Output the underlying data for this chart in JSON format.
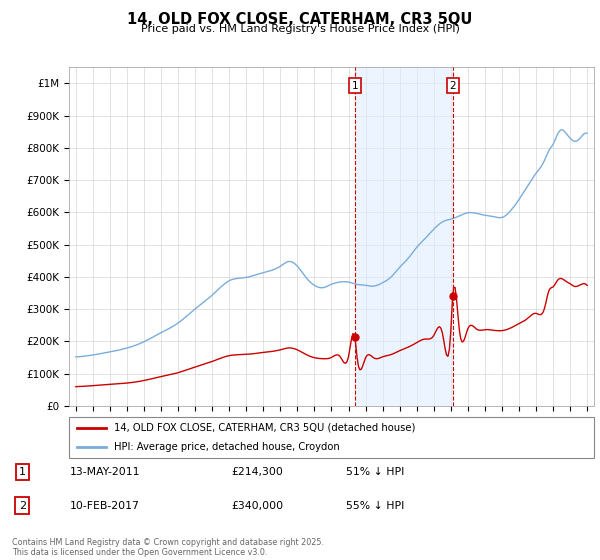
{
  "title": "14, OLD FOX CLOSE, CATERHAM, CR3 5QU",
  "subtitle": "Price paid vs. HM Land Registry's House Price Index (HPI)",
  "legend_label_red": "14, OLD FOX CLOSE, CATERHAM, CR3 5QU (detached house)",
  "legend_label_blue": "HPI: Average price, detached house, Croydon",
  "footer": "Contains HM Land Registry data © Crown copyright and database right 2025.\nThis data is licensed under the Open Government Licence v3.0.",
  "annotation1": {
    "num": "1",
    "date": "13-MAY-2011",
    "price": "£214,300",
    "pct": "51% ↓ HPI"
  },
  "annotation2": {
    "num": "2",
    "date": "10-FEB-2017",
    "price": "£340,000",
    "pct": "55% ↓ HPI"
  },
  "red_color": "#cc0000",
  "blue_color": "#7aaddb",
  "blue_fill": "#ddeeff",
  "background": "#ffffff",
  "ylim": [
    0,
    1050000
  ],
  "yticks": [
    0,
    100000,
    200000,
    300000,
    400000,
    500000,
    600000,
    700000,
    800000,
    900000,
    1000000
  ],
  "ytick_labels": [
    "£0",
    "£100K",
    "£200K",
    "£300K",
    "£400K",
    "£500K",
    "£600K",
    "£700K",
    "£800K",
    "£900K",
    "£1M"
  ],
  "vline1_x": 2011.37,
  "vline2_x": 2017.11,
  "dot1_x": 2011.37,
  "dot1_y": 214300,
  "dot2_x": 2017.11,
  "dot2_y": 340000,
  "xlim_left": 1994.6,
  "xlim_right": 2025.4
}
